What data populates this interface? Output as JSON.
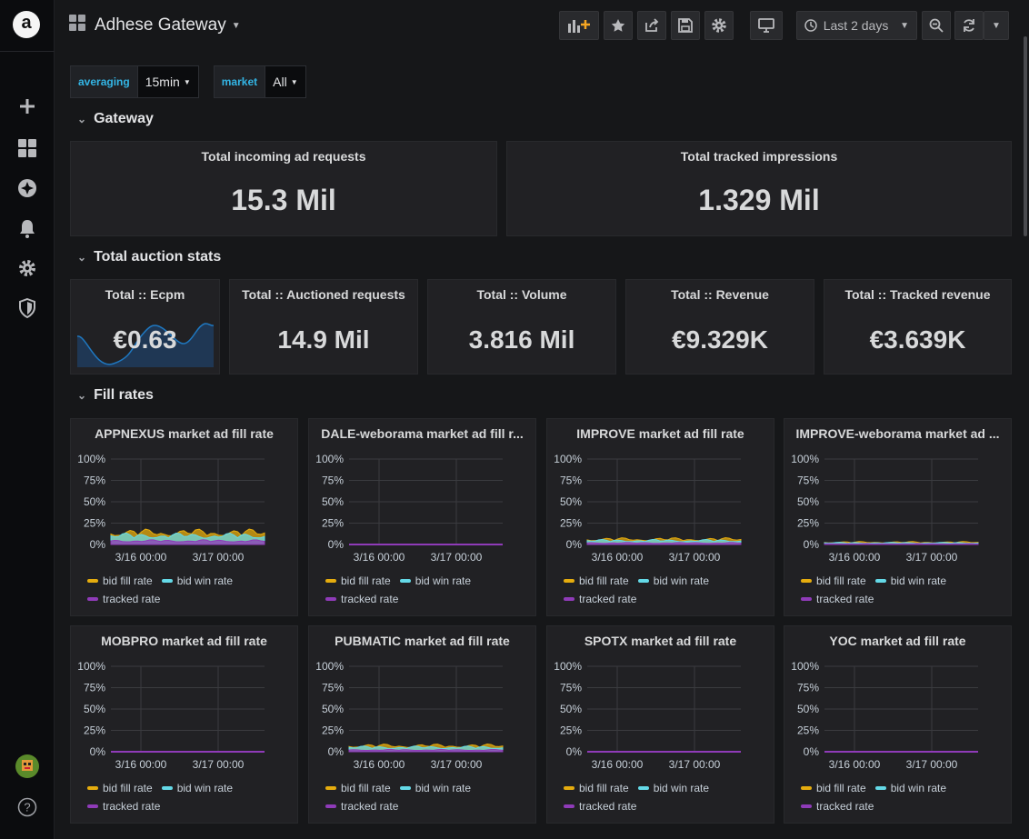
{
  "app": {
    "title": "Adhese Gateway",
    "logo_letter": "a",
    "accent": "#33b5e5"
  },
  "sidebar": {
    "items": [
      {
        "icon": "plus-icon"
      },
      {
        "icon": "dashboards-icon"
      },
      {
        "icon": "explore-compass-icon"
      },
      {
        "icon": "alerting-bell-icon"
      },
      {
        "icon": "configuration-gear-icon"
      },
      {
        "icon": "server-admin-shield-icon"
      }
    ],
    "bottom": [
      {
        "icon": "user-avatar"
      },
      {
        "icon": "help-icon",
        "label": "?"
      }
    ]
  },
  "toolbar": {
    "time_range": "Last 2 days",
    "buttons": [
      "add-panel-icon",
      "star-icon",
      "share-icon",
      "save-icon",
      "settings-icon",
      "tv-mode-icon",
      "zoom-out-icon",
      "refresh-icon",
      "refresh-dropdown-icon"
    ]
  },
  "variables": [
    {
      "label": "averaging",
      "value": "15min"
    },
    {
      "label": "market",
      "value": "All"
    }
  ],
  "rows": [
    {
      "title": "Gateway"
    },
    {
      "title": "Total auction stats"
    },
    {
      "title": "Fill rates"
    }
  ],
  "gateway": {
    "panels": [
      {
        "title": "Total incoming ad requests",
        "value": "15.3 Mil"
      },
      {
        "title": "Total tracked impressions",
        "value": "1.329 Mil"
      }
    ]
  },
  "auction": {
    "panels": [
      {
        "title": "Total :: Ecpm",
        "value": "€0.63"
      },
      {
        "title": "Total :: Auctioned requests",
        "value": "14.9 Mil"
      },
      {
        "title": "Total :: Volume",
        "value": "3.816 Mil"
      },
      {
        "title": "Total :: Revenue",
        "value": "€9.329K"
      },
      {
        "title": "Total :: Tracked revenue",
        "value": "€3.639K"
      }
    ]
  },
  "fill_legend": {
    "bid_fill": "bid fill rate",
    "bid_win": "bid win rate",
    "tracked": "tracked rate",
    "colors": {
      "bid_fill": "#e5ac0e",
      "bid_win": "#64d9e7",
      "tracked": "#8f3bb8"
    }
  },
  "fill_axis": {
    "y_ticks": [
      "100%",
      "75%",
      "50%",
      "25%",
      "0%"
    ],
    "x_ticks": [
      "3/16 00:00",
      "3/17 00:00"
    ]
  },
  "fill_panels": [
    {
      "title": "APPNEXUS market ad fill rate",
      "level": 0.16
    },
    {
      "title": "DALE-weborama market ad fill r...",
      "level": 0
    },
    {
      "title": "IMPROVE market ad fill rate",
      "level": 0.07
    },
    {
      "title": "IMPROVE-weborama market ad ...",
      "level": 0.03
    },
    {
      "title": "MOBPRO market ad fill rate",
      "level": 0
    },
    {
      "title": "PUBMATIC market ad fill rate",
      "level": 0.08
    },
    {
      "title": "SPOTX market ad fill rate",
      "level": 0
    },
    {
      "title": "YOC market ad fill rate",
      "level": 0
    }
  ],
  "chart_data": [
    {
      "type": "area",
      "title": "APPNEXUS market ad fill rate",
      "x": [
        "3/16 00:00",
        "3/17 00:00"
      ],
      "ylim": [
        0,
        100
      ],
      "series": [
        {
          "name": "bid fill rate",
          "approx_mean": 16
        },
        {
          "name": "bid win rate",
          "approx_mean": 12
        },
        {
          "name": "tracked rate",
          "approx_mean": 5
        }
      ]
    },
    {
      "type": "area",
      "title": "DALE-weborama market ad fill r...",
      "ylim": [
        0,
        100
      ],
      "series": [
        {
          "name": "bid fill rate",
          "approx_mean": 0
        },
        {
          "name": "bid win rate",
          "approx_mean": 0
        },
        {
          "name": "tracked rate",
          "approx_mean": 0
        }
      ]
    },
    {
      "type": "area",
      "title": "IMPROVE market ad fill rate",
      "ylim": [
        0,
        100
      ],
      "series": [
        {
          "name": "bid fill rate",
          "approx_mean": 7
        },
        {
          "name": "bid win rate",
          "approx_mean": 5
        },
        {
          "name": "tracked rate",
          "approx_mean": 2
        }
      ]
    },
    {
      "type": "area",
      "title": "IMPROVE-weborama market ad ...",
      "ylim": [
        0,
        100
      ],
      "series": [
        {
          "name": "bid fill rate",
          "approx_mean": 3
        },
        {
          "name": "bid win rate",
          "approx_mean": 2
        },
        {
          "name": "tracked rate",
          "approx_mean": 1
        }
      ]
    },
    {
      "type": "area",
      "title": "MOBPRO market ad fill rate",
      "ylim": [
        0,
        100
      ],
      "series": [
        {
          "name": "bid fill rate",
          "approx_mean": 0
        },
        {
          "name": "bid win rate",
          "approx_mean": 0
        },
        {
          "name": "tracked rate",
          "approx_mean": 0
        }
      ]
    },
    {
      "type": "area",
      "title": "PUBMATIC market ad fill rate",
      "ylim": [
        0,
        100
      ],
      "series": [
        {
          "name": "bid fill rate",
          "approx_mean": 8
        },
        {
          "name": "bid win rate",
          "approx_mean": 6
        },
        {
          "name": "tracked rate",
          "approx_mean": 2
        }
      ]
    },
    {
      "type": "area",
      "title": "SPOTX market ad fill rate",
      "ylim": [
        0,
        100
      ],
      "series": [
        {
          "name": "bid fill rate",
          "approx_mean": 0
        },
        {
          "name": "bid win rate",
          "approx_mean": 0
        },
        {
          "name": "tracked rate",
          "approx_mean": 0
        }
      ]
    },
    {
      "type": "area",
      "title": "YOC market ad fill rate",
      "ylim": [
        0,
        100
      ],
      "series": [
        {
          "name": "bid fill rate",
          "approx_mean": 0
        },
        {
          "name": "bid win rate",
          "approx_mean": 0
        },
        {
          "name": "tracked rate",
          "approx_mean": 0
        }
      ]
    }
  ]
}
